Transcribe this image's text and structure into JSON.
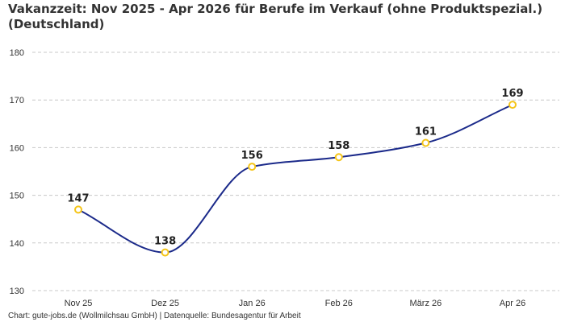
{
  "chart_data": {
    "type": "line",
    "title": "Vakanzzeit: Nov 2025 - Apr 2026 für Berufe im Verkauf (ohne Produktspezial.) (Deutschland)",
    "categories": [
      "Nov 25",
      "Dez 25",
      "Jan 26",
      "Feb 26",
      "März 26",
      "Apr 26"
    ],
    "series": [
      {
        "values": [
          147,
          138,
          156,
          158,
          161,
          169
        ]
      }
    ],
    "ylim": [
      130,
      180
    ],
    "yticks": [
      130,
      140,
      150,
      160,
      170,
      180
    ],
    "grid": true,
    "data_labels": true,
    "line_color": "#1b2a8a",
    "marker_color": "#f5c518"
  },
  "footer": {
    "source": "Chart: gute-jobs.de (Wollmilchsau GmbH) | Datenquelle: Bundesagentur für Arbeit"
  }
}
